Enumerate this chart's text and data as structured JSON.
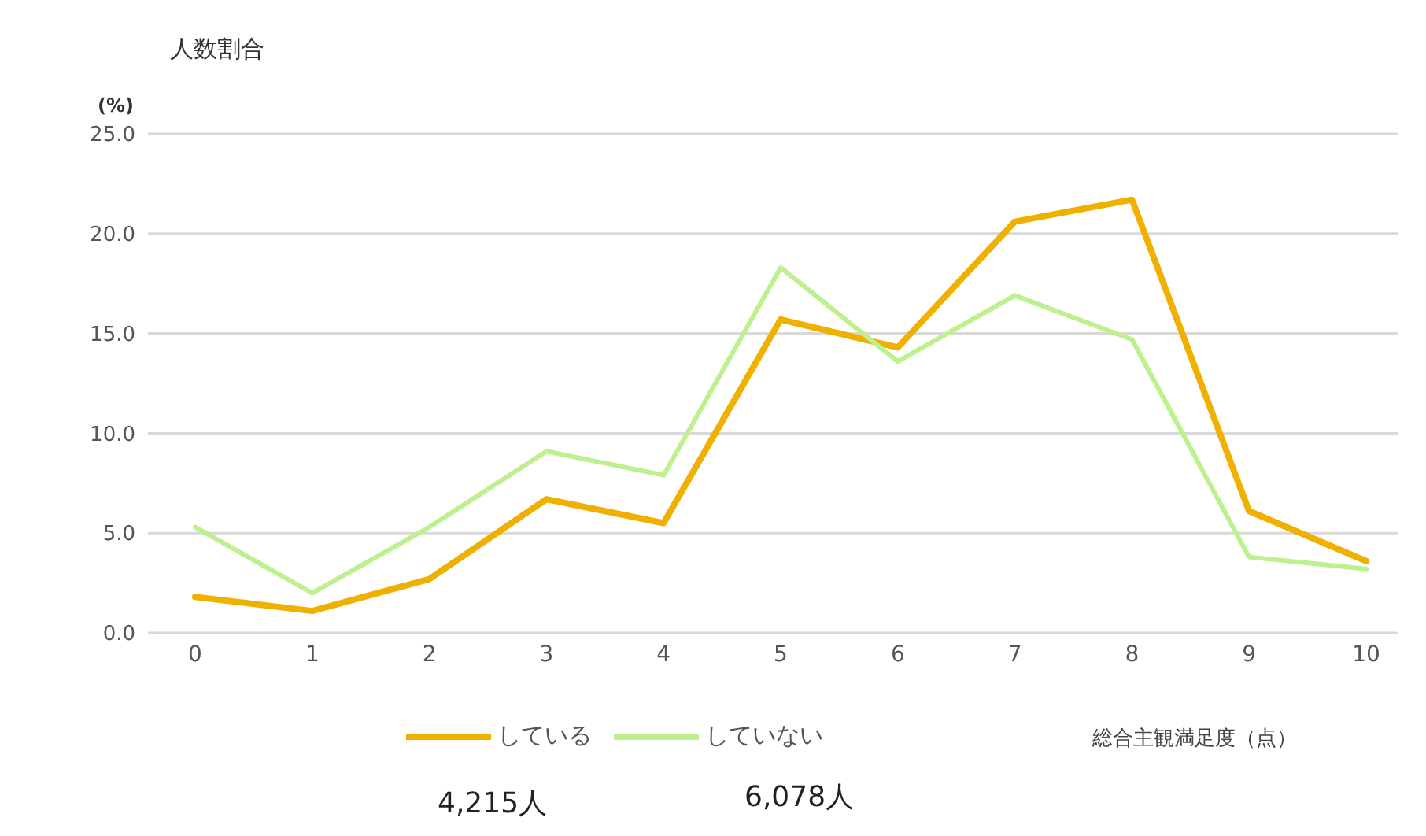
{
  "chart_data": {
    "type": "line",
    "ylabel": "人数割合\n(%)",
    "xlabel": "総合主観満足度（点）",
    "categories": [
      "0",
      "1",
      "2",
      "3",
      "4",
      "5",
      "6",
      "7",
      "8",
      "9",
      "10"
    ],
    "series": [
      {
        "name": "している",
        "color": "#f0b000",
        "values": [
          1.8,
          1.1,
          2.7,
          6.7,
          5.5,
          15.7,
          14.3,
          20.6,
          21.7,
          6.1,
          3.6
        ]
      },
      {
        "name": "していない",
        "color": "#bdf08e",
        "values": [
          5.3,
          2.0,
          5.3,
          9.1,
          7.9,
          18.3,
          13.6,
          16.9,
          14.7,
          3.8,
          3.2
        ]
      }
    ],
    "ylim": [
      0,
      25
    ],
    "yticks": [
      {
        "value": 0,
        "label": "0.0"
      },
      {
        "value": 5,
        "label": "5.0"
      },
      {
        "value": 10,
        "label": "10.0"
      },
      {
        "value": 15,
        "label": "15.0"
      },
      {
        "value": 20,
        "label": "20.0"
      },
      {
        "value": 25,
        "label": "25.0"
      }
    ],
    "grid": "y",
    "legend": "bottom",
    "marker": "none",
    "line_style": "solid",
    "annotations": [
      "4,215人",
      "6,078人"
    ]
  }
}
